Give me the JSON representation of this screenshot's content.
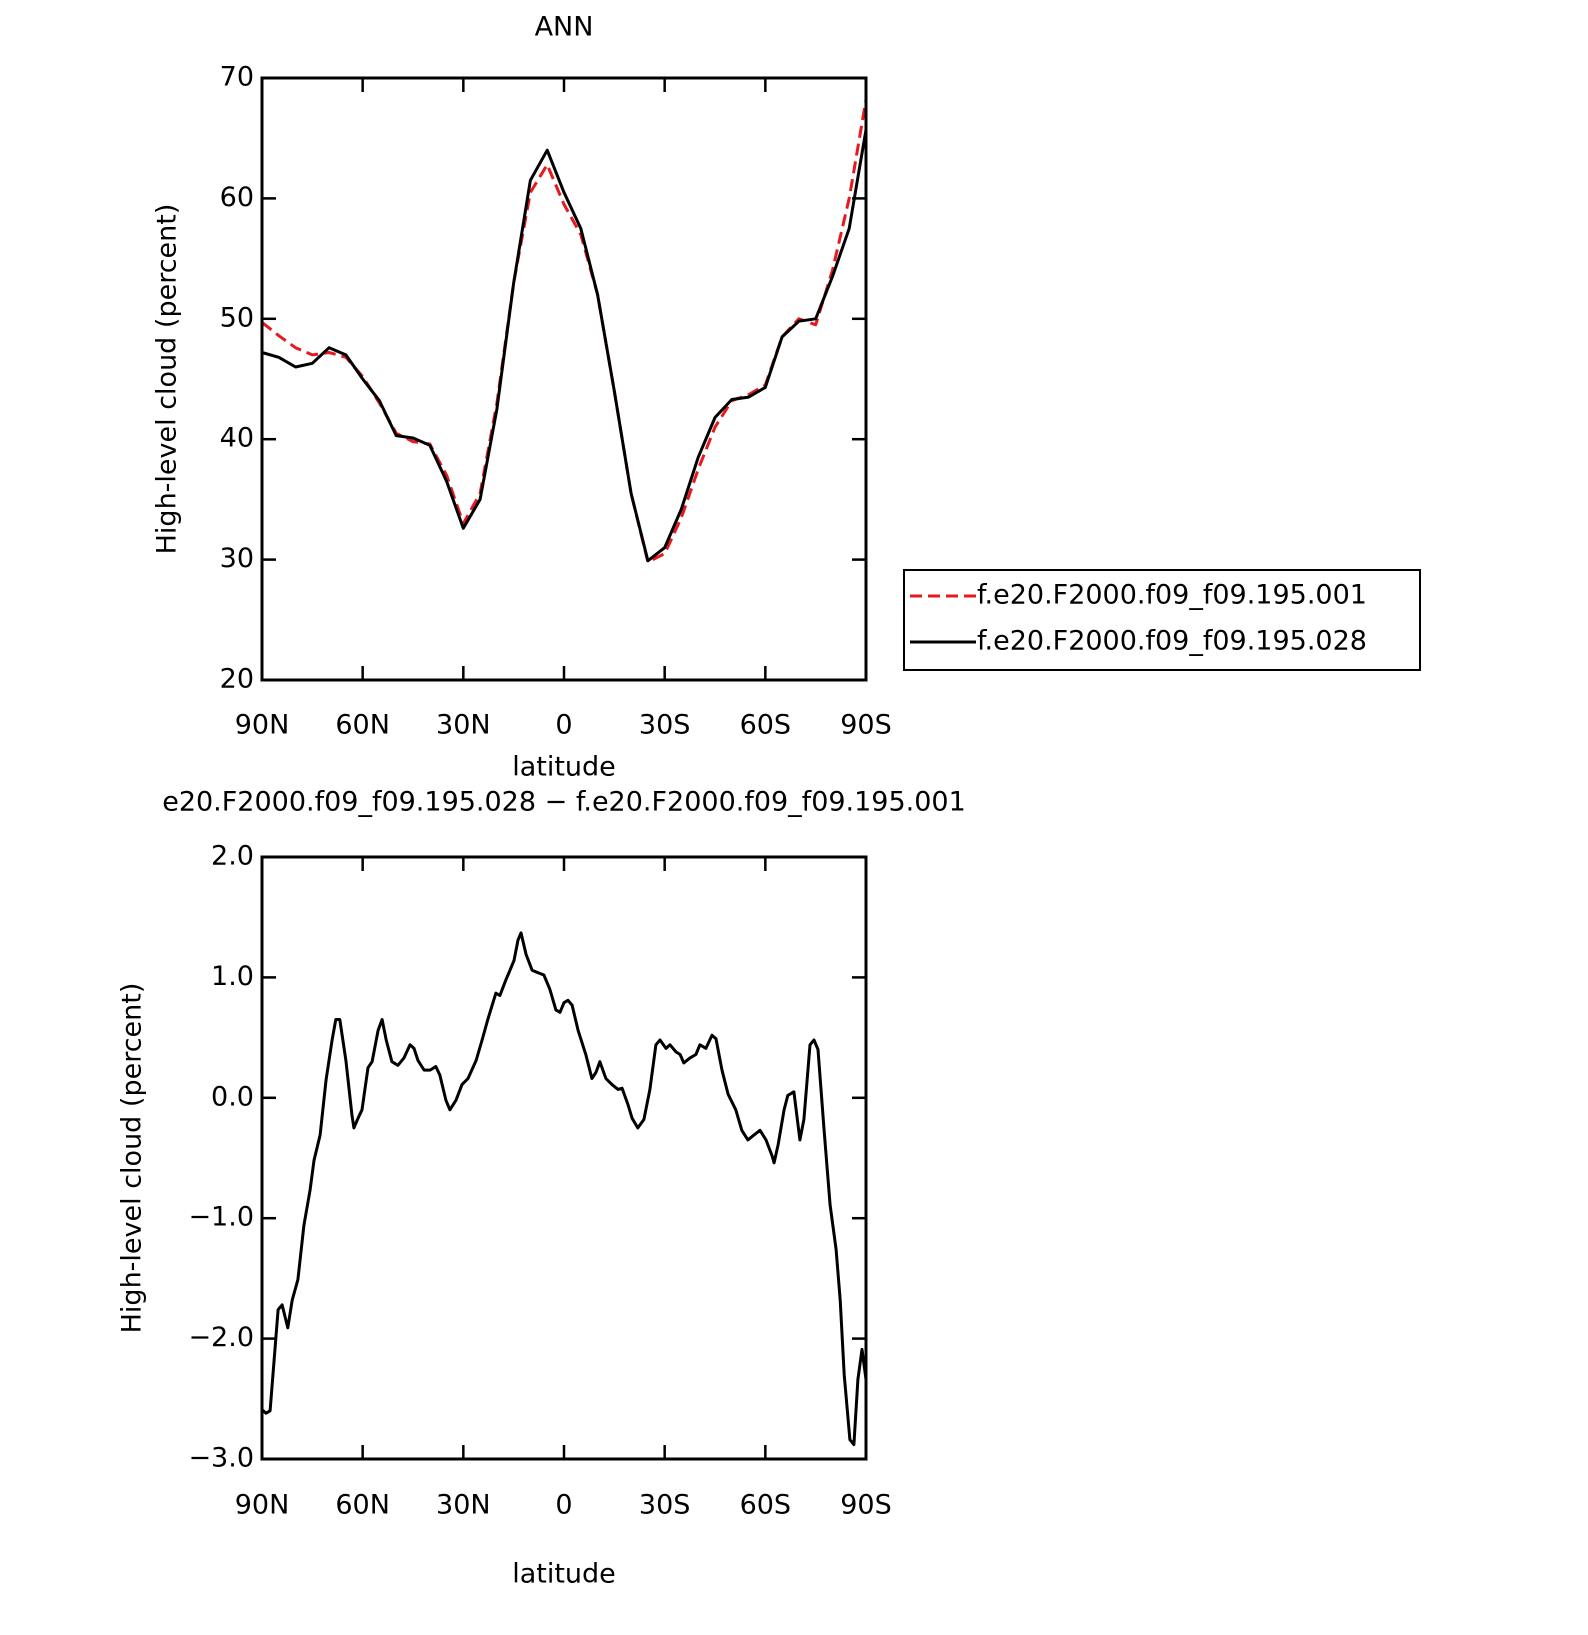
{
  "chart_data": [
    {
      "type": "line",
      "title": "ANN",
      "xlabel": "latitude",
      "ylabel": "High-level cloud (percent)",
      "xlim": [
        90,
        -90
      ],
      "xticks": [
        {
          "value": 90,
          "label": "90N"
        },
        {
          "value": 60,
          "label": "60N"
        },
        {
          "value": 30,
          "label": "30N"
        },
        0,
        {
          "value": -30,
          "label": "30S"
        },
        {
          "value": -60,
          "label": "60S"
        },
        {
          "value": -90,
          "label": "90S"
        }
      ],
      "ylim": [
        20,
        70
      ],
      "yticks": [
        20,
        30,
        40,
        50,
        60,
        70
      ],
      "legend": "right",
      "x": [
        90,
        85,
        80,
        75,
        70,
        65,
        60,
        55,
        50,
        45,
        40,
        35,
        30,
        25,
        20,
        15,
        10,
        5,
        0,
        -5,
        -10,
        -15,
        -20,
        -25,
        -30,
        -35,
        -40,
        -45,
        -50,
        -55,
        -60,
        -65,
        -70,
        -75,
        -80,
        -85,
        -90
      ],
      "series": [
        {
          "name": "f.e20.F2000.f09_f09.195.001",
          "color": "#e8191e",
          "dashed": true,
          "values": [
            49.7,
            48.6,
            47.6,
            47.0,
            47.2,
            46.8,
            45.2,
            43.0,
            40.5,
            39.8,
            39.6,
            37.0,
            33.0,
            35.5,
            43.0,
            53.0,
            60.5,
            62.8,
            59.5,
            57.0,
            52.0,
            44.0,
            35.5,
            29.8,
            30.5,
            33.5,
            37.5,
            41.0,
            43.2,
            43.7,
            44.5,
            48.5,
            50.0,
            49.5,
            54.0,
            60.0,
            68.2
          ]
        },
        {
          "name": "f.e20.F2000.f09_f09.195.028",
          "color": "#000000",
          "dashed": false,
          "values": [
            47.2,
            46.8,
            46.0,
            46.3,
            47.6,
            47.0,
            45.0,
            43.2,
            40.3,
            40.1,
            39.5,
            36.5,
            32.6,
            35.0,
            42.5,
            53.0,
            61.5,
            64.0,
            60.5,
            57.5,
            52.0,
            44.0,
            35.5,
            29.9,
            31.0,
            34.2,
            38.5,
            41.8,
            43.3,
            43.5,
            44.3,
            48.5,
            49.8,
            50.0,
            53.5,
            57.5,
            65.7
          ]
        }
      ]
    },
    {
      "type": "line",
      "title": "e20.F2000.f09_f09.195.028 − f.e20.F2000.f09_f09.195.001",
      "xlabel": "latitude",
      "ylabel": "High-level cloud (percent)",
      "xlim": [
        90,
        -90
      ],
      "xticks": [
        {
          "value": 90,
          "label": "90N"
        },
        {
          "value": 60,
          "label": "60N"
        },
        {
          "value": 30,
          "label": "30N"
        },
        0,
        {
          "value": -30,
          "label": "30S"
        },
        {
          "value": -60,
          "label": "60S"
        },
        {
          "value": -90,
          "label": "90S"
        }
      ],
      "ylim": [
        -3,
        2
      ],
      "yticks": [
        {
          "value": -3,
          "label": "−3.0"
        },
        {
          "value": -2,
          "label": "−2.0"
        },
        {
          "value": -1,
          "label": "−1.0"
        },
        {
          "value": 0,
          "label": "0.0"
        },
        {
          "value": 1,
          "label": "1.0"
        },
        {
          "value": 2,
          "label": "2.0"
        }
      ],
      "color": "#000000",
      "x": [
        90,
        88.8,
        87.6,
        85.2,
        84,
        82.3,
        81,
        79.3,
        77.5,
        75.7,
        74.5,
        72.7,
        70.9,
        69.1,
        68,
        66.8,
        65,
        63.2,
        62.6,
        61.4,
        60.2,
        58.4,
        57.2,
        55.4,
        54.2,
        53,
        51.3,
        49.5,
        47.7,
        45.9,
        44.7,
        43.5,
        41.7,
        39.9,
        38.2,
        37,
        35.2,
        34,
        32.2,
        30.4,
        28.6,
        26.2,
        24.4,
        22.7,
        20.3,
        19.1,
        17.3,
        16.1,
        14.9,
        13.7,
        12.8,
        11.3,
        9.5,
        7.8,
        6,
        4.2,
        2.4,
        1.2,
        0,
        -1.2,
        -2.4,
        -4.2,
        -6.5,
        -8.3,
        -9.5,
        -10.7,
        -12.5,
        -14.3,
        -16.1,
        -17.3,
        -19.1,
        -20.3,
        -22,
        -23.8,
        -25.6,
        -27.4,
        -28.6,
        -30.4,
        -31.6,
        -33.4,
        -34.6,
        -35.7,
        -37.5,
        -39.3,
        -40.5,
        -42.3,
        -44.1,
        -45.3,
        -47.1,
        -48.9,
        -51.2,
        -53,
        -54.8,
        -56.6,
        -58.4,
        -60.2,
        -62,
        -62.6,
        -63.8,
        -65.6,
        -66.7,
        -68.5,
        -70.3,
        -71.5,
        -73.3,
        -74.5,
        -75.7,
        -77.5,
        -79.3,
        -81.1,
        -82.3,
        -83.5,
        -85.2,
        -86.4,
        -87.6,
        -88.8,
        -90
      ],
      "values": [
        -2.59,
        -2.62,
        -2.6,
        -1.76,
        -1.72,
        -1.91,
        -1.68,
        -1.51,
        -1.06,
        -0.77,
        -0.52,
        -0.31,
        0.15,
        0.48,
        0.65,
        0.65,
        0.31,
        -0.14,
        -0.25,
        -0.17,
        -0.1,
        0.25,
        0.3,
        0.56,
        0.65,
        0.48,
        0.3,
        0.27,
        0.33,
        0.44,
        0.41,
        0.31,
        0.23,
        0.23,
        0.26,
        0.19,
        -0.02,
        -0.1,
        -0.02,
        0.11,
        0.16,
        0.31,
        0.48,
        0.65,
        0.87,
        0.85,
        0.98,
        1.06,
        1.14,
        1.31,
        1.37,
        1.19,
        1.06,
        1.04,
        1.02,
        0.9,
        0.73,
        0.71,
        0.79,
        0.81,
        0.77,
        0.56,
        0.36,
        0.16,
        0.21,
        0.3,
        0.16,
        0.11,
        0.07,
        0.08,
        -0.06,
        -0.17,
        -0.25,
        -0.18,
        0.07,
        0.44,
        0.48,
        0.41,
        0.44,
        0.38,
        0.36,
        0.29,
        0.33,
        0.36,
        0.44,
        0.41,
        0.52,
        0.49,
        0.23,
        0.03,
        -0.1,
        -0.27,
        -0.35,
        -0.31,
        -0.27,
        -0.35,
        -0.48,
        -0.54,
        -0.39,
        -0.1,
        0.02,
        0.05,
        -0.35,
        -0.18,
        0.44,
        0.48,
        0.4,
        -0.27,
        -0.89,
        -1.26,
        -1.68,
        -2.3,
        -2.84,
        -2.88,
        -2.34,
        -2.09,
        -2.34
      ]
    }
  ]
}
